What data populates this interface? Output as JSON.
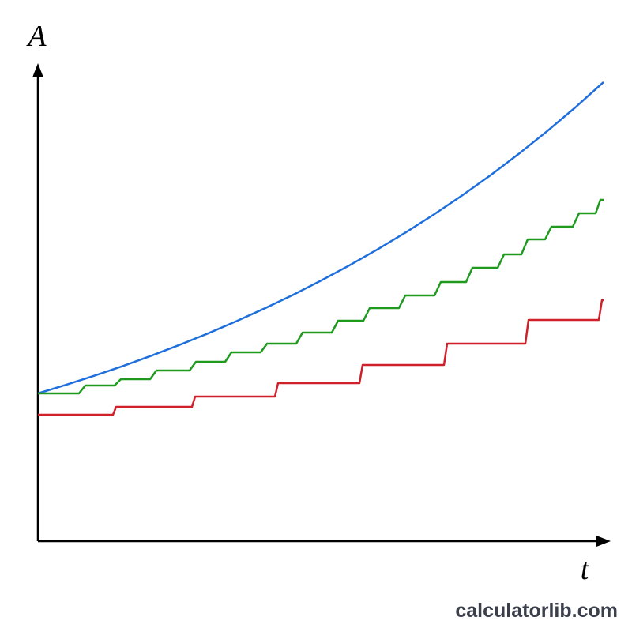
{
  "chart_data": {
    "type": "line",
    "x_label": "t",
    "y_label": "A",
    "xlim": [
      0,
      725
    ],
    "ylim": [
      0,
      605
    ],
    "series": [
      {
        "color": "#1e6fdc",
        "x": [
          0,
          35.8,
          71.6,
          107.4,
          143.2,
          179,
          214.8,
          250.6,
          286.4,
          322.2,
          358,
          393.8,
          429.6,
          465.4,
          501.2,
          537,
          572.8,
          608.6,
          644.4,
          680.2,
          716
        ],
        "values": [
          187,
          197.9,
          209.4,
          221.6,
          234.6,
          248.3,
          262.7,
          278.1,
          294.3,
          311.4,
          329.6,
          348.8,
          369.2,
          390.7,
          413.5,
          437.6,
          463.1,
          490.2,
          518.8,
          549,
          581.1
        ]
      },
      {
        "color": "#1f9a1f",
        "x": [
          0,
          52,
          60,
          97,
          105,
          142,
          150,
          192,
          200,
          237,
          245,
          282,
          290,
          327,
          335,
          372,
          380,
          412,
          420,
          457,
          465,
          502,
          510,
          542,
          550,
          582,
          590,
          612,
          620,
          642,
          650,
          677,
          685,
          706,
          712,
          716
        ],
        "values": [
          187,
          187,
          197,
          197,
          205,
          205,
          216,
          216,
          227,
          227,
          239,
          239,
          250,
          250,
          264,
          264,
          279,
          279,
          295,
          295,
          311,
          311,
          328,
          328,
          346,
          346,
          363,
          363,
          382,
          382,
          398,
          398,
          415,
          415,
          432,
          432
        ]
      },
      {
        "color": "#d0202a",
        "x": [
          0,
          95,
          99,
          195,
          199,
          300,
          304,
          407,
          411,
          514,
          518,
          617,
          621,
          710,
          714,
          716
        ],
        "values": [
          160,
          160,
          170,
          170,
          183,
          183,
          200,
          200,
          223,
          223,
          250,
          250,
          280,
          280,
          305,
          305
        ]
      }
    ]
  },
  "watermark": "calculatorlib.com"
}
